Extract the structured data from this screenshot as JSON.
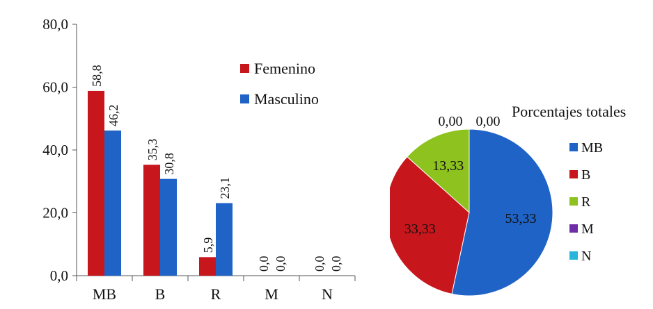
{
  "chart_data": [
    {
      "type": "bar",
      "categories": [
        "MB",
        "B",
        "R",
        "M",
        "N"
      ],
      "y_tick_labels": [
        "0,0",
        "20,0",
        "40,0",
        "60,0",
        "80,0"
      ],
      "ylim": [
        0,
        80
      ],
      "series": [
        {
          "name": "Femenino",
          "color": "#c8161d",
          "values": [
            58.8,
            35.3,
            5.9,
            0.0,
            0.0
          ],
          "labels": [
            "58,8",
            "35,3",
            "5,9",
            "0,0",
            "0,0"
          ]
        },
        {
          "name": "Masculino",
          "color": "#1f63c6",
          "values": [
            46.2,
            30.8,
            23.1,
            0.0,
            0.0
          ],
          "labels": [
            "46,2",
            "30,8",
            "23,1",
            "0,0",
            "0,0"
          ]
        }
      ],
      "legend": "top-right",
      "grid": false
    },
    {
      "type": "pie",
      "title": "Porcentajes totales",
      "categories": [
        "MB",
        "B",
        "R",
        "M",
        "N"
      ],
      "values": [
        53.33,
        33.33,
        13.33,
        0.0,
        0.0
      ],
      "labels": [
        "53,33",
        "33,33",
        "13,33",
        "0,00",
        "0,00"
      ],
      "colors": [
        "#1f63c6",
        "#c8161d",
        "#8dc21f",
        "#6f2da8",
        "#27b5d9"
      ],
      "legend": "right"
    }
  ]
}
